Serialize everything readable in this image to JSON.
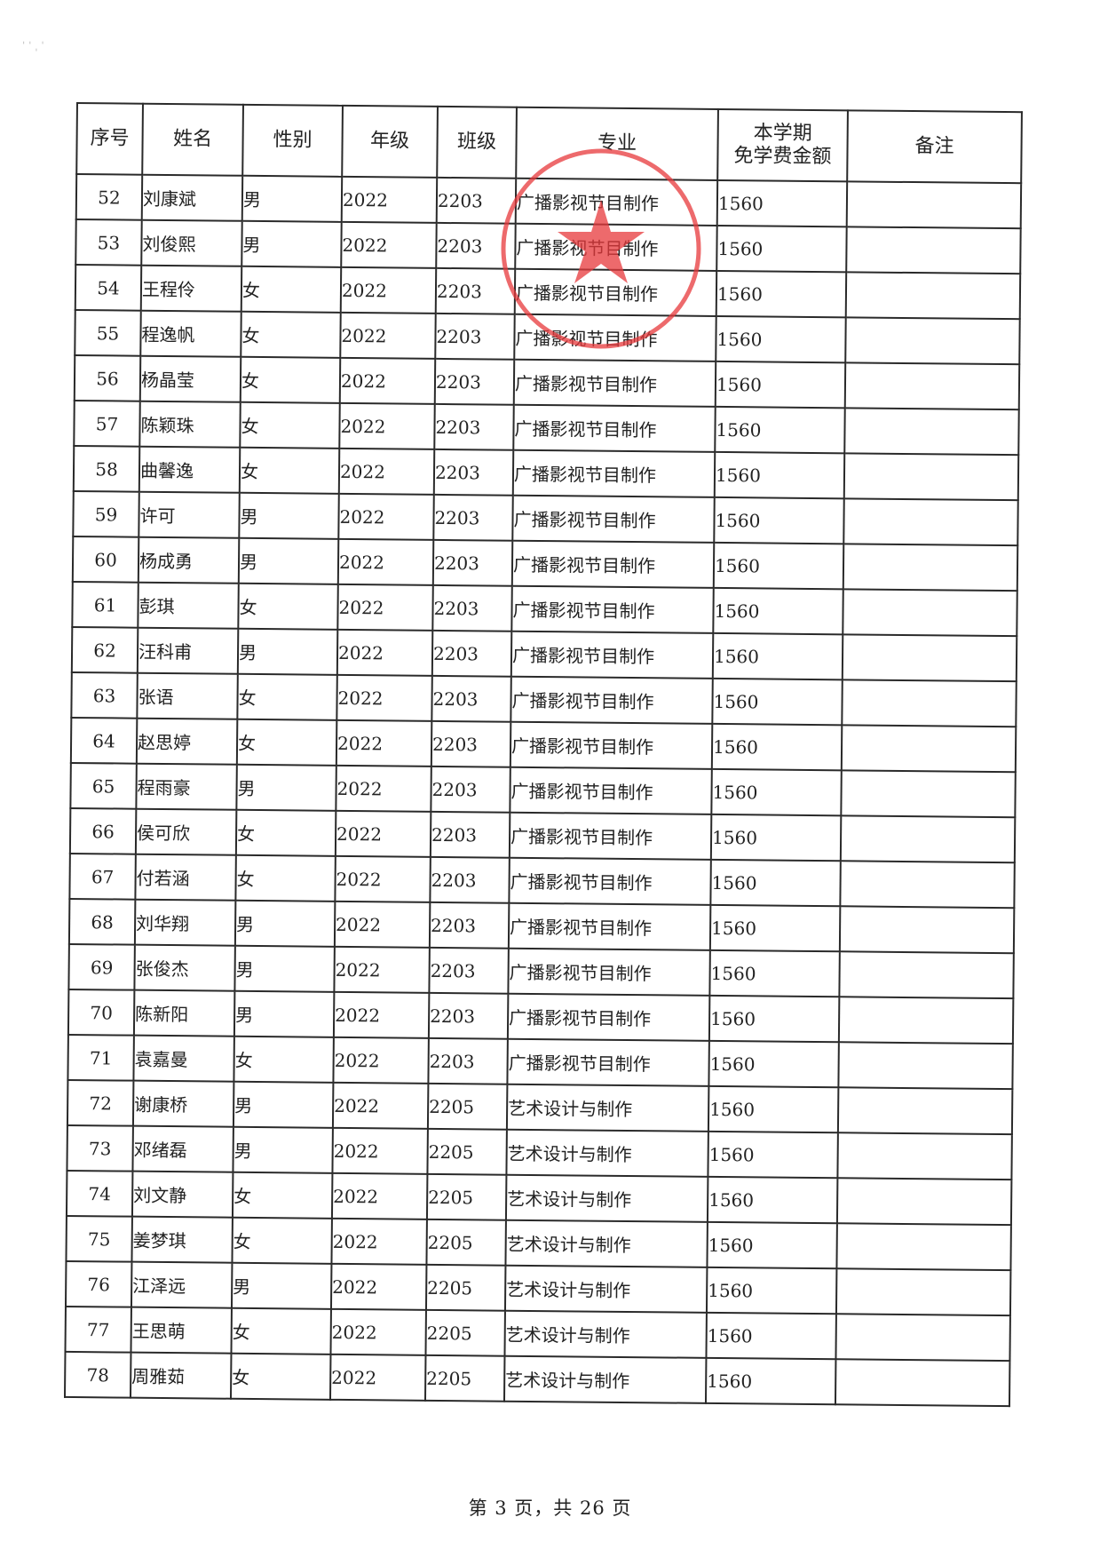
{
  "table": {
    "headers": {
      "seq": "序号",
      "name": "姓名",
      "gender": "性别",
      "grade": "年级",
      "class": "班级",
      "major": "专业",
      "amount_line1": "本学期",
      "amount_line2": "免学费金额",
      "note": "备注"
    },
    "rows": [
      {
        "seq": "52",
        "name": "刘康斌",
        "gender": "男",
        "grade": "2022",
        "class": "2203",
        "major": "广播影视节目制作",
        "amount": "1560",
        "note": ""
      },
      {
        "seq": "53",
        "name": "刘俊熙",
        "gender": "男",
        "grade": "2022",
        "class": "2203",
        "major": "广播影视节目制作",
        "amount": "1560",
        "note": ""
      },
      {
        "seq": "54",
        "name": "王程伶",
        "gender": "女",
        "grade": "2022",
        "class": "2203",
        "major": "广播影视节目制作",
        "amount": "1560",
        "note": ""
      },
      {
        "seq": "55",
        "name": "程逸帆",
        "gender": "女",
        "grade": "2022",
        "class": "2203",
        "major": "广播影视节目制作",
        "amount": "1560",
        "note": ""
      },
      {
        "seq": "56",
        "name": "杨晶莹",
        "gender": "女",
        "grade": "2022",
        "class": "2203",
        "major": "广播影视节目制作",
        "amount": "1560",
        "note": ""
      },
      {
        "seq": "57",
        "name": "陈颖珠",
        "gender": "女",
        "grade": "2022",
        "class": "2203",
        "major": "广播影视节目制作",
        "amount": "1560",
        "note": ""
      },
      {
        "seq": "58",
        "name": "曲馨逸",
        "gender": "女",
        "grade": "2022",
        "class": "2203",
        "major": "广播影视节目制作",
        "amount": "1560",
        "note": ""
      },
      {
        "seq": "59",
        "name": "许可",
        "gender": "男",
        "grade": "2022",
        "class": "2203",
        "major": "广播影视节目制作",
        "amount": "1560",
        "note": ""
      },
      {
        "seq": "60",
        "name": "杨成勇",
        "gender": "男",
        "grade": "2022",
        "class": "2203",
        "major": "广播影视节目制作",
        "amount": "1560",
        "note": ""
      },
      {
        "seq": "61",
        "name": "彭琪",
        "gender": "女",
        "grade": "2022",
        "class": "2203",
        "major": "广播影视节目制作",
        "amount": "1560",
        "note": ""
      },
      {
        "seq": "62",
        "name": "汪科甫",
        "gender": "男",
        "grade": "2022",
        "class": "2203",
        "major": "广播影视节目制作",
        "amount": "1560",
        "note": ""
      },
      {
        "seq": "63",
        "name": "张语",
        "gender": "女",
        "grade": "2022",
        "class": "2203",
        "major": "广播影视节目制作",
        "amount": "1560",
        "note": ""
      },
      {
        "seq": "64",
        "name": "赵思婷",
        "gender": "女",
        "grade": "2022",
        "class": "2203",
        "major": "广播影视节目制作",
        "amount": "1560",
        "note": ""
      },
      {
        "seq": "65",
        "name": "程雨豪",
        "gender": "男",
        "grade": "2022",
        "class": "2203",
        "major": "广播影视节目制作",
        "amount": "1560",
        "note": ""
      },
      {
        "seq": "66",
        "name": "侯可欣",
        "gender": "女",
        "grade": "2022",
        "class": "2203",
        "major": "广播影视节目制作",
        "amount": "1560",
        "note": ""
      },
      {
        "seq": "67",
        "name": "付若涵",
        "gender": "女",
        "grade": "2022",
        "class": "2203",
        "major": "广播影视节目制作",
        "amount": "1560",
        "note": ""
      },
      {
        "seq": "68",
        "name": "刘华翔",
        "gender": "男",
        "grade": "2022",
        "class": "2203",
        "major": "广播影视节目制作",
        "amount": "1560",
        "note": ""
      },
      {
        "seq": "69",
        "name": "张俊杰",
        "gender": "男",
        "grade": "2022",
        "class": "2203",
        "major": "广播影视节目制作",
        "amount": "1560",
        "note": ""
      },
      {
        "seq": "70",
        "name": "陈新阳",
        "gender": "男",
        "grade": "2022",
        "class": "2203",
        "major": "广播影视节目制作",
        "amount": "1560",
        "note": ""
      },
      {
        "seq": "71",
        "name": "袁嘉曼",
        "gender": "女",
        "grade": "2022",
        "class": "2203",
        "major": "广播影视节目制作",
        "amount": "1560",
        "note": ""
      },
      {
        "seq": "72",
        "name": "谢康桥",
        "gender": "男",
        "grade": "2022",
        "class": "2205",
        "major": "艺术设计与制作",
        "amount": "1560",
        "note": ""
      },
      {
        "seq": "73",
        "name": "邓绪磊",
        "gender": "男",
        "grade": "2022",
        "class": "2205",
        "major": "艺术设计与制作",
        "amount": "1560",
        "note": ""
      },
      {
        "seq": "74",
        "name": "刘文静",
        "gender": "女",
        "grade": "2022",
        "class": "2205",
        "major": "艺术设计与制作",
        "amount": "1560",
        "note": ""
      },
      {
        "seq": "75",
        "name": "姜梦琪",
        "gender": "女",
        "grade": "2022",
        "class": "2205",
        "major": "艺术设计与制作",
        "amount": "1560",
        "note": ""
      },
      {
        "seq": "76",
        "name": "江泽远",
        "gender": "男",
        "grade": "2022",
        "class": "2205",
        "major": "艺术设计与制作",
        "amount": "1560",
        "note": ""
      },
      {
        "seq": "77",
        "name": "王思萌",
        "gender": "女",
        "grade": "2022",
        "class": "2205",
        "major": "艺术设计与制作",
        "amount": "1560",
        "note": ""
      },
      {
        "seq": "78",
        "name": "周雅茹",
        "gender": "女",
        "grade": "2022",
        "class": "2205",
        "major": "艺术设计与制作",
        "amount": "1560",
        "note": ""
      }
    ]
  },
  "footer": {
    "page_text": "第 3 页，共 26 页"
  },
  "stamp": {
    "color": "#e8393c",
    "icon": "star-icon"
  }
}
